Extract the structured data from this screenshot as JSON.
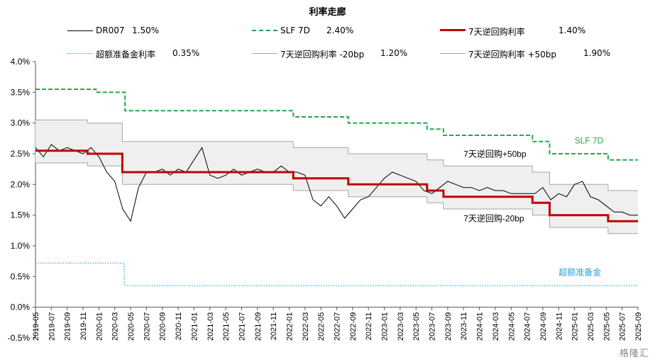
{
  "chart_data": {
    "type": "line",
    "title": "利率走廊",
    "ylim": [
      -0.5,
      4.0
    ],
    "yticks": [
      "4.0%",
      "3.5%",
      "3.0%",
      "2.5%",
      "2.0%",
      "1.5%",
      "1.0%",
      "0.5%",
      "0.0%",
      "-0.5%"
    ],
    "xticks": [
      "2019-05",
      "2019-07",
      "2019-09",
      "2019-11",
      "2020-01",
      "2020-03",
      "2020-05",
      "2020-07",
      "2020-09",
      "2020-11",
      "2021-01",
      "2021-03",
      "2021-05",
      "2021-07",
      "2021-09",
      "2021-11",
      "2022-01",
      "2022-03",
      "2022-05",
      "2022-07",
      "2022-09",
      "2022-11",
      "2023-01",
      "2023-03",
      "2023-05",
      "2023-07",
      "2023-09",
      "2023-11",
      "2024-01",
      "2024-03",
      "2024-05",
      "2024-07",
      "2024-09",
      "2024-11",
      "2025-01",
      "2025-03",
      "2025-05",
      "2025-07",
      "2025-09"
    ],
    "x_range": [
      "2019-05",
      "2025-09"
    ],
    "legend": [
      {
        "name": "DR007",
        "value": "1.50%",
        "color": "#000000",
        "style": "solid-thin"
      },
      {
        "name": "SLF 7D",
        "value": "2.40%",
        "color": "#22a84a",
        "style": "dashed"
      },
      {
        "name": "7天逆回购利率",
        "value": "1.40%",
        "color": "#c00000",
        "style": "solid-thick"
      },
      {
        "name": "超额准备金利率",
        "value": "0.35%",
        "color": "#2aa0d8",
        "style": "dotted"
      },
      {
        "name": "7天逆回购利率 -20bp",
        "value": "1.20%",
        "color": "#a6a6a6",
        "style": "solid-thin"
      },
      {
        "name": "7天逆回购利率 +50bp",
        "value": "1.90%",
        "color": "#a6a6a6",
        "style": "solid-thin"
      }
    ],
    "annotations": [
      {
        "text": "SLF 7D",
        "color": "#22a84a",
        "x": "2025-01",
        "y": 2.67
      },
      {
        "text": "7天逆回购+50bp",
        "color": "#000000",
        "x": "2023-11",
        "y": 2.45
      },
      {
        "text": "7天逆回购-20bp",
        "color": "#000000",
        "x": "2023-11",
        "y": 1.4
      },
      {
        "text": "超额准备金",
        "color": "#2aa0d8",
        "x": "2024-11",
        "y": 0.52
      }
    ],
    "series": [
      {
        "name": "7天逆回购利率",
        "type": "step",
        "x": [
          "2019-05",
          "2019-11-18",
          "2020-03-30",
          "2022-01-17",
          "2022-08-15",
          "2023-06-13",
          "2023-08-15",
          "2024-07-22",
          "2024-09-27",
          "2025-05-08",
          "2025-09"
        ],
        "values": [
          2.55,
          2.5,
          2.2,
          2.1,
          2.0,
          1.9,
          1.8,
          1.7,
          1.5,
          1.4,
          1.4
        ]
      },
      {
        "name": "SLF 7D",
        "type": "step",
        "x": [
          "2019-05",
          "2019-12-20",
          "2020-04-10",
          "2022-01-17",
          "2022-08-15",
          "2023-06-13",
          "2023-08-15",
          "2024-07-22",
          "2024-09-27",
          "2025-05-08",
          "2025-09"
        ],
        "values": [
          3.55,
          3.5,
          3.2,
          3.1,
          3.0,
          2.9,
          2.8,
          2.7,
          2.5,
          2.4,
          2.4
        ]
      },
      {
        "name": "超额准备金利率",
        "type": "step",
        "x": [
          "2019-05",
          "2020-04-07",
          "2025-09"
        ],
        "values": [
          0.72,
          0.35,
          0.35
        ]
      },
      {
        "name": "DR007",
        "type": "line",
        "x": [
          "2019-05",
          "2019-06",
          "2019-07",
          "2019-08",
          "2019-09",
          "2019-10",
          "2019-11",
          "2019-12",
          "2020-01",
          "2020-02",
          "2020-03",
          "2020-04",
          "2020-05",
          "2020-06",
          "2020-07",
          "2020-08",
          "2020-09",
          "2020-10",
          "2020-11",
          "2020-12",
          "2021-01",
          "2021-02",
          "2021-03",
          "2021-04",
          "2021-05",
          "2021-06",
          "2021-07",
          "2021-08",
          "2021-09",
          "2021-10",
          "2021-11",
          "2021-12",
          "2022-01",
          "2022-02",
          "2022-03",
          "2022-04",
          "2022-05",
          "2022-06",
          "2022-07",
          "2022-08",
          "2022-09",
          "2022-10",
          "2022-11",
          "2022-12",
          "2023-01",
          "2023-02",
          "2023-03",
          "2023-04",
          "2023-05",
          "2023-06",
          "2023-07",
          "2023-08",
          "2023-09",
          "2023-10",
          "2023-11",
          "2023-12",
          "2024-01",
          "2024-02",
          "2024-03",
          "2024-04",
          "2024-05",
          "2024-06",
          "2024-07",
          "2024-08",
          "2024-09",
          "2024-10",
          "2024-11",
          "2024-12",
          "2025-01",
          "2025-02",
          "2025-03",
          "2025-04",
          "2025-05",
          "2025-06",
          "2025-07",
          "2025-08",
          "2025-09"
        ],
        "values": [
          2.6,
          2.45,
          2.65,
          2.55,
          2.6,
          2.55,
          2.5,
          2.6,
          2.45,
          2.2,
          2.05,
          1.6,
          1.4,
          1.95,
          2.2,
          2.2,
          2.25,
          2.15,
          2.25,
          2.2,
          2.4,
          2.6,
          2.15,
          2.1,
          2.15,
          2.25,
          2.15,
          2.2,
          2.25,
          2.2,
          2.2,
          2.3,
          2.2,
          2.2,
          2.15,
          1.75,
          1.65,
          1.8,
          1.65,
          1.45,
          1.6,
          1.75,
          1.8,
          1.95,
          2.1,
          2.2,
          2.15,
          2.1,
          2.05,
          1.9,
          1.85,
          1.95,
          2.05,
          2.0,
          1.95,
          1.95,
          1.9,
          1.95,
          1.9,
          1.9,
          1.85,
          1.85,
          1.85,
          1.85,
          1.95,
          1.75,
          1.85,
          1.8,
          2.0,
          2.05,
          1.8,
          1.75,
          1.65,
          1.55,
          1.55,
          1.5,
          1.5
        ]
      }
    ]
  },
  "watermark": "格隆汇"
}
